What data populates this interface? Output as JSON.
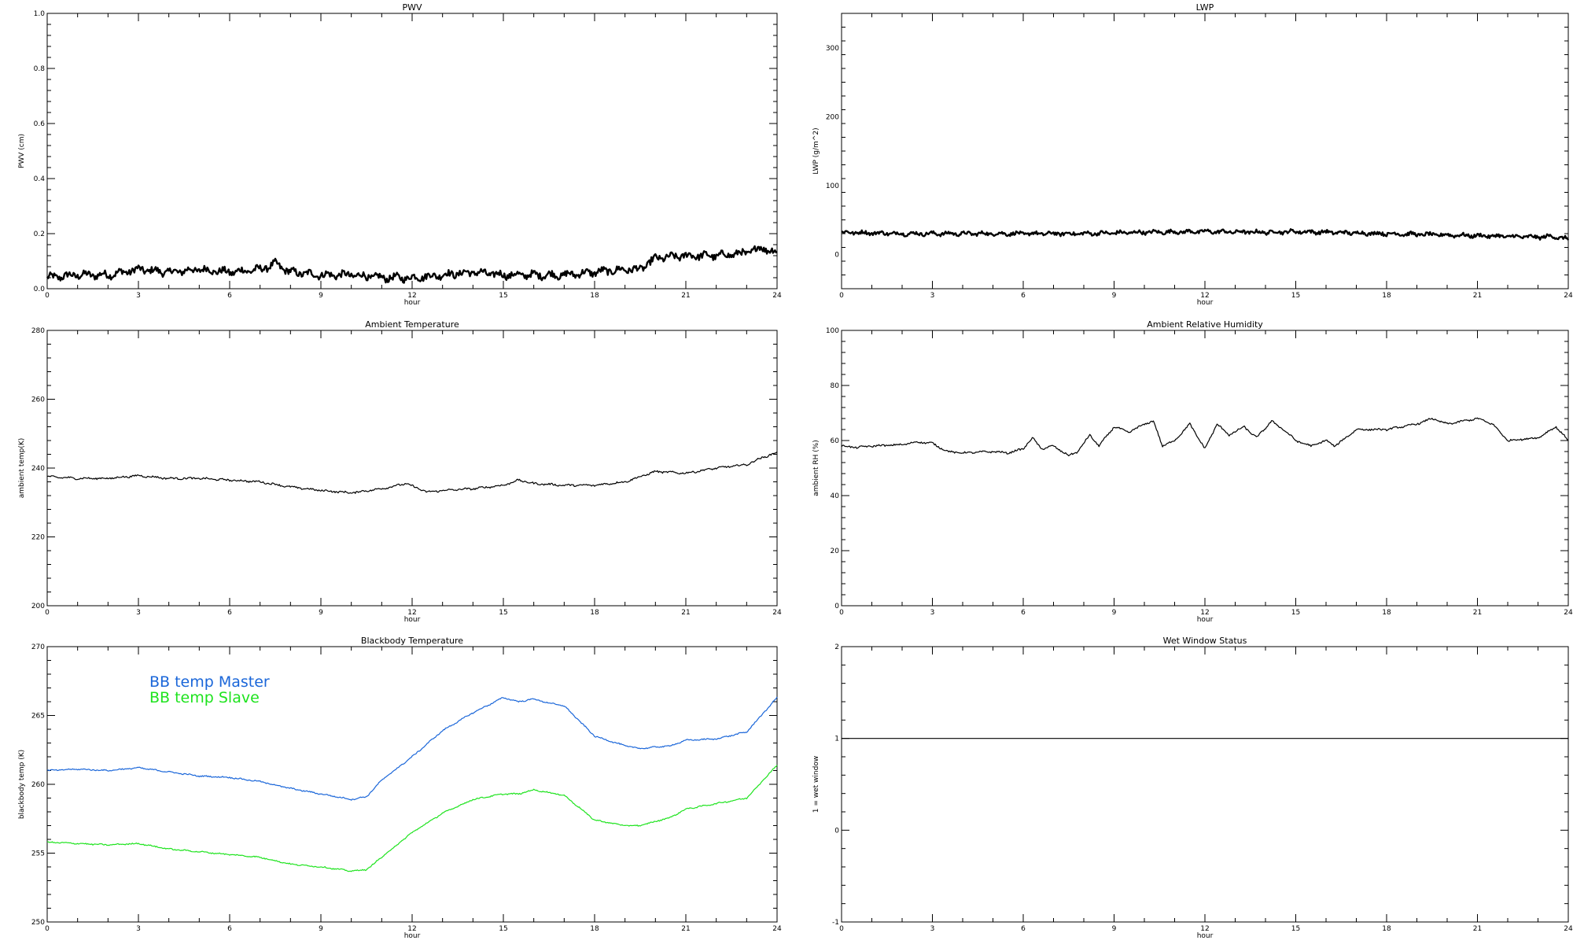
{
  "chart_data": [
    {
      "type": "line",
      "title": "PWV",
      "xlabel": "hour",
      "ylabel": "PWV (cm)",
      "xlim": [
        0,
        24
      ],
      "ylim": [
        0,
        1.0
      ],
      "xticks": [
        0,
        3,
        6,
        9,
        12,
        15,
        18,
        21,
        24
      ],
      "yticks": [
        0,
        0.2,
        0.4,
        0.6,
        0.8,
        1.0
      ],
      "ytick_labels": [
        "0.0",
        "0.2",
        "0.4",
        "0.6",
        "0.8",
        "1.0"
      ],
      "grid": false,
      "noise": 0.012,
      "series": [
        {
          "color": "#000000",
          "thick": true,
          "x": [
            0,
            1,
            2,
            3,
            4,
            5,
            6,
            7,
            7.5,
            8,
            9,
            10,
            11,
            12,
            13,
            14,
            15,
            16,
            17,
            18,
            19,
            19.5,
            20,
            21,
            22,
            23,
            23.5,
            24
          ],
          "y": [
            0.04,
            0.05,
            0.05,
            0.07,
            0.06,
            0.07,
            0.06,
            0.07,
            0.09,
            0.06,
            0.05,
            0.05,
            0.04,
            0.04,
            0.05,
            0.06,
            0.05,
            0.05,
            0.05,
            0.06,
            0.07,
            0.07,
            0.11,
            0.12,
            0.12,
            0.13,
            0.15,
            0.13
          ]
        }
      ]
    },
    {
      "type": "line",
      "title": "LWP",
      "xlabel": "hour",
      "ylabel": "LWP (g/m^2)",
      "xlim": [
        0,
        24
      ],
      "ylim": [
        -50,
        350
      ],
      "xticks": [
        0,
        3,
        6,
        9,
        12,
        15,
        18,
        21,
        24
      ],
      "yticks": [
        0,
        100,
        200,
        300
      ],
      "ytick_labels": [
        "0",
        "100",
        "200",
        "300"
      ],
      "grid": false,
      "noise": 2.5,
      "series": [
        {
          "color": "#000000",
          "thick": true,
          "x": [
            0,
            2,
            4,
            6,
            8,
            10,
            12,
            14,
            15,
            16,
            18,
            20,
            21,
            22,
            23,
            23.5,
            24
          ],
          "y": [
            32,
            30,
            30,
            30,
            30,
            32,
            33,
            32,
            33,
            32,
            30,
            28,
            27,
            26,
            25,
            26,
            22
          ]
        }
      ]
    },
    {
      "type": "line",
      "title": "Ambient Temperature",
      "xlabel": "hour",
      "ylabel": "ambient temp(K)",
      "xlim": [
        0,
        24
      ],
      "ylim": [
        200,
        280
      ],
      "xticks": [
        0,
        3,
        6,
        9,
        12,
        15,
        18,
        21,
        24
      ],
      "yticks": [
        200,
        220,
        240,
        260,
        280
      ],
      "ytick_labels": [
        "200",
        "220",
        "240",
        "260",
        "280"
      ],
      "grid": false,
      "noise": 0.25,
      "series": [
        {
          "color": "#000000",
          "thick": false,
          "x": [
            0,
            1,
            2,
            3,
            4,
            5,
            6,
            7,
            8,
            9,
            10,
            11,
            11.8,
            12.5,
            13,
            14,
            15,
            15.5,
            16,
            17,
            18,
            19,
            19.5,
            20,
            21,
            22,
            22.5,
            23,
            23.5,
            24
          ],
          "y": [
            237.5,
            237,
            237,
            237.8,
            237,
            237,
            236.5,
            236,
            234.5,
            233.5,
            232.8,
            234,
            235.5,
            233,
            233.5,
            234,
            235,
            236.5,
            235.5,
            235,
            235,
            236,
            237.5,
            239,
            238.5,
            240,
            240.5,
            241,
            243,
            244.5
          ]
        }
      ]
    },
    {
      "type": "line",
      "title": "Ambient Relative Humidity",
      "xlabel": "hour",
      "ylabel": "ambient RH (%)",
      "xlim": [
        0,
        24
      ],
      "ylim": [
        0,
        100
      ],
      "xticks": [
        0,
        3,
        6,
        9,
        12,
        15,
        18,
        21,
        24
      ],
      "yticks": [
        0,
        20,
        40,
        60,
        80,
        100
      ],
      "ytick_labels": [
        "0",
        "20",
        "40",
        "60",
        "80",
        "100"
      ],
      "grid": false,
      "noise": 0.3,
      "series": [
        {
          "color": "#000000",
          "thick": false,
          "x": [
            0,
            0.5,
            1,
            2,
            2.5,
            3,
            3.5,
            4,
            5,
            5.5,
            6,
            6.3,
            6.6,
            7,
            7.5,
            7.8,
            8.2,
            8.5,
            9,
            9.5,
            10,
            10.3,
            10.6,
            11,
            11.5,
            12,
            12.4,
            12.8,
            13.3,
            13.7,
            14.2,
            14.6,
            15,
            15.5,
            16,
            16.3,
            17,
            18,
            18.5,
            19,
            19.5,
            20,
            20.5,
            21,
            21.5,
            22,
            22.5,
            23,
            23.3,
            23.6,
            24
          ],
          "y": [
            58,
            57.5,
            58,
            58.5,
            59.5,
            59,
            56,
            55.5,
            56,
            55.5,
            57,
            61,
            57,
            58,
            54.5,
            56,
            62,
            58,
            65,
            63,
            66,
            67,
            58,
            60,
            66,
            57,
            66,
            62,
            65,
            61,
            67,
            64,
            60,
            58,
            60,
            58,
            64,
            64,
            65,
            66,
            68,
            66,
            67,
            68,
            66,
            60,
            60.5,
            61,
            63,
            65,
            60
          ]
        }
      ]
    },
    {
      "type": "line",
      "title": "Blackbody Temperature",
      "xlabel": "hour",
      "ylabel": "blackbody temp (K)",
      "xlim": [
        0,
        24
      ],
      "ylim": [
        250,
        270
      ],
      "xticks": [
        0,
        3,
        6,
        9,
        12,
        15,
        18,
        21,
        24
      ],
      "yticks": [
        250,
        255,
        260,
        265,
        270
      ],
      "ytick_labels": [
        "250",
        "255",
        "260",
        "265",
        "270"
      ],
      "grid": false,
      "noise": 0.04,
      "legend": "top-left",
      "series": [
        {
          "name": "BB temp Master",
          "color": "#1a66d9",
          "thick": false,
          "x": [
            0,
            1,
            2,
            3,
            4,
            5,
            6,
            7,
            8,
            9,
            10,
            10.5,
            11,
            12,
            13,
            14,
            15,
            15.5,
            16,
            16.5,
            17,
            18,
            19,
            19.5,
            20,
            20.5,
            21,
            22,
            23,
            24
          ],
          "y": [
            261,
            261.1,
            261,
            261.2,
            260.9,
            260.6,
            260.5,
            260.2,
            259.7,
            259.3,
            258.9,
            259.1,
            260.3,
            262,
            263.9,
            265.2,
            266.3,
            266,
            266.2,
            265.9,
            265.7,
            263.5,
            262.8,
            262.6,
            262.7,
            262.8,
            263.2,
            263.3,
            263.8,
            266.3
          ]
        },
        {
          "name": "BB temp Slave",
          "color": "#1ee31e",
          "thick": false,
          "x": [
            0,
            1,
            2,
            3,
            4,
            5,
            6,
            7,
            8,
            9,
            10,
            10.5,
            11,
            12,
            13,
            14,
            15,
            15.5,
            16,
            16.5,
            17,
            18,
            19,
            19.5,
            20,
            20.5,
            21,
            22,
            23,
            24
          ],
          "y": [
            255.8,
            255.7,
            255.6,
            255.7,
            255.3,
            255.1,
            254.9,
            254.7,
            254.2,
            254,
            253.7,
            253.8,
            254.7,
            256.5,
            257.9,
            258.9,
            259.3,
            259.3,
            259.6,
            259.4,
            259.2,
            257.4,
            257,
            257,
            257.3,
            257.6,
            258.2,
            258.6,
            259,
            261.4
          ]
        }
      ]
    },
    {
      "type": "line",
      "title": "Wet Window Status",
      "xlabel": "hour",
      "ylabel": "1 = wet window",
      "xlim": [
        0,
        24
      ],
      "ylim": [
        -1,
        2
      ],
      "xticks": [
        0,
        3,
        6,
        9,
        12,
        15,
        18,
        21,
        24
      ],
      "yticks": [
        -1,
        0,
        1,
        2
      ],
      "ytick_labels": [
        "-1",
        "0",
        "1",
        "2"
      ],
      "grid": false,
      "noise": 0,
      "series": [
        {
          "color": "#000000",
          "thick": false,
          "x": [
            0,
            24
          ],
          "y": [
            1,
            1
          ]
        }
      ]
    }
  ]
}
